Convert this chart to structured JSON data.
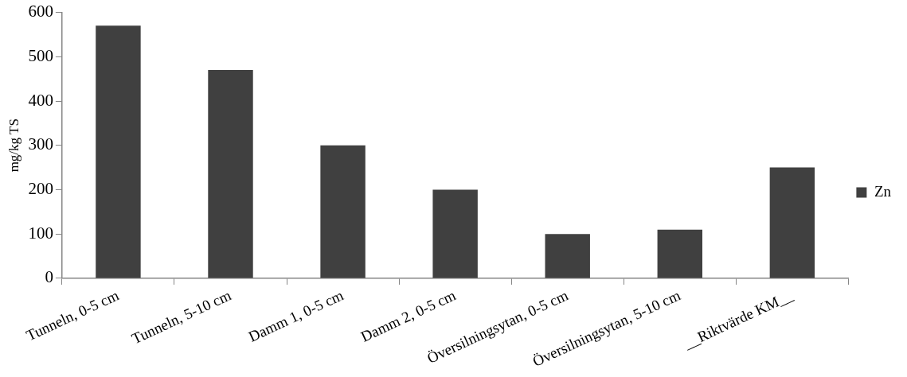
{
  "chart_data": {
    "type": "bar",
    "ylabel": "mg/kg TS",
    "categories": [
      "Tunneln, 0-5 cm",
      "Tunneln, 5-10 cm",
      "Damm 1, 0-5 cm",
      "Damm 2, 0-5 cm",
      "Översilningsytan, 0-5 cm",
      "Översilningsytan, 5-10 cm",
      "__Riktvärde KM__"
    ],
    "series": [
      {
        "name": "Zn",
        "color": "#404040",
        "values": [
          570,
          470,
          300,
          200,
          100,
          110,
          250
        ]
      }
    ],
    "ylim": [
      0,
      600
    ],
    "yticks": [
      0,
      100,
      200,
      300,
      400,
      500,
      600
    ],
    "grid": false,
    "legend": "right"
  }
}
